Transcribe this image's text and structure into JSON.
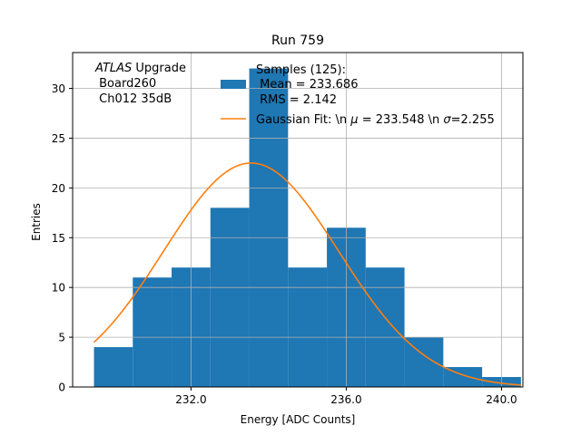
{
  "chart_data": {
    "type": "bar",
    "title": "Run 759",
    "xlabel": "Energy [ADC Counts]",
    "ylabel": "Entries",
    "xlim": [
      228.95,
      240.55
    ],
    "ylim": [
      0,
      33.6
    ],
    "x_ticks": [
      232.0,
      236.0,
      240.0
    ],
    "x_tick_labels": [
      "232.0",
      "236.0",
      "240.0"
    ],
    "y_ticks": [
      0,
      5,
      10,
      15,
      20,
      25,
      30
    ],
    "y_tick_labels": [
      "0",
      "5",
      "10",
      "15",
      "20",
      "25",
      "30"
    ],
    "grid": true,
    "bins": {
      "edges": [
        229.5,
        230.5,
        231.5,
        232.5,
        233.5,
        234.5,
        235.5,
        236.5,
        237.5,
        238.5,
        239.5,
        240.5
      ],
      "counts": [
        4,
        11,
        12,
        18,
        32,
        12,
        16,
        12,
        5,
        2,
        1
      ]
    },
    "fit": {
      "mu": 233.548,
      "sigma": 2.255,
      "amplitude": 22.5,
      "x_range": [
        229.5,
        240.5
      ]
    },
    "annotation_lines": [
      "ATLAS Upgrade",
      " Board260",
      " Ch012 35dB"
    ],
    "legend": {
      "location": "top-right",
      "hist_label_lines": [
        "Samples (125):",
        " Mean = 233.686",
        " RMS = 2.142"
      ],
      "fit_label_prefix": "Gaussian Fit: \\n ",
      "fit_label_mu_symbol": "μ",
      "fit_label_mid": " = 233.548 \\n ",
      "fit_label_sigma_symbol": "σ",
      "fit_label_suffix": "=2.255"
    },
    "colors": {
      "bars": "#1f77b4",
      "fit": "#ff7f0e",
      "grid": "#b0b0b0"
    }
  }
}
